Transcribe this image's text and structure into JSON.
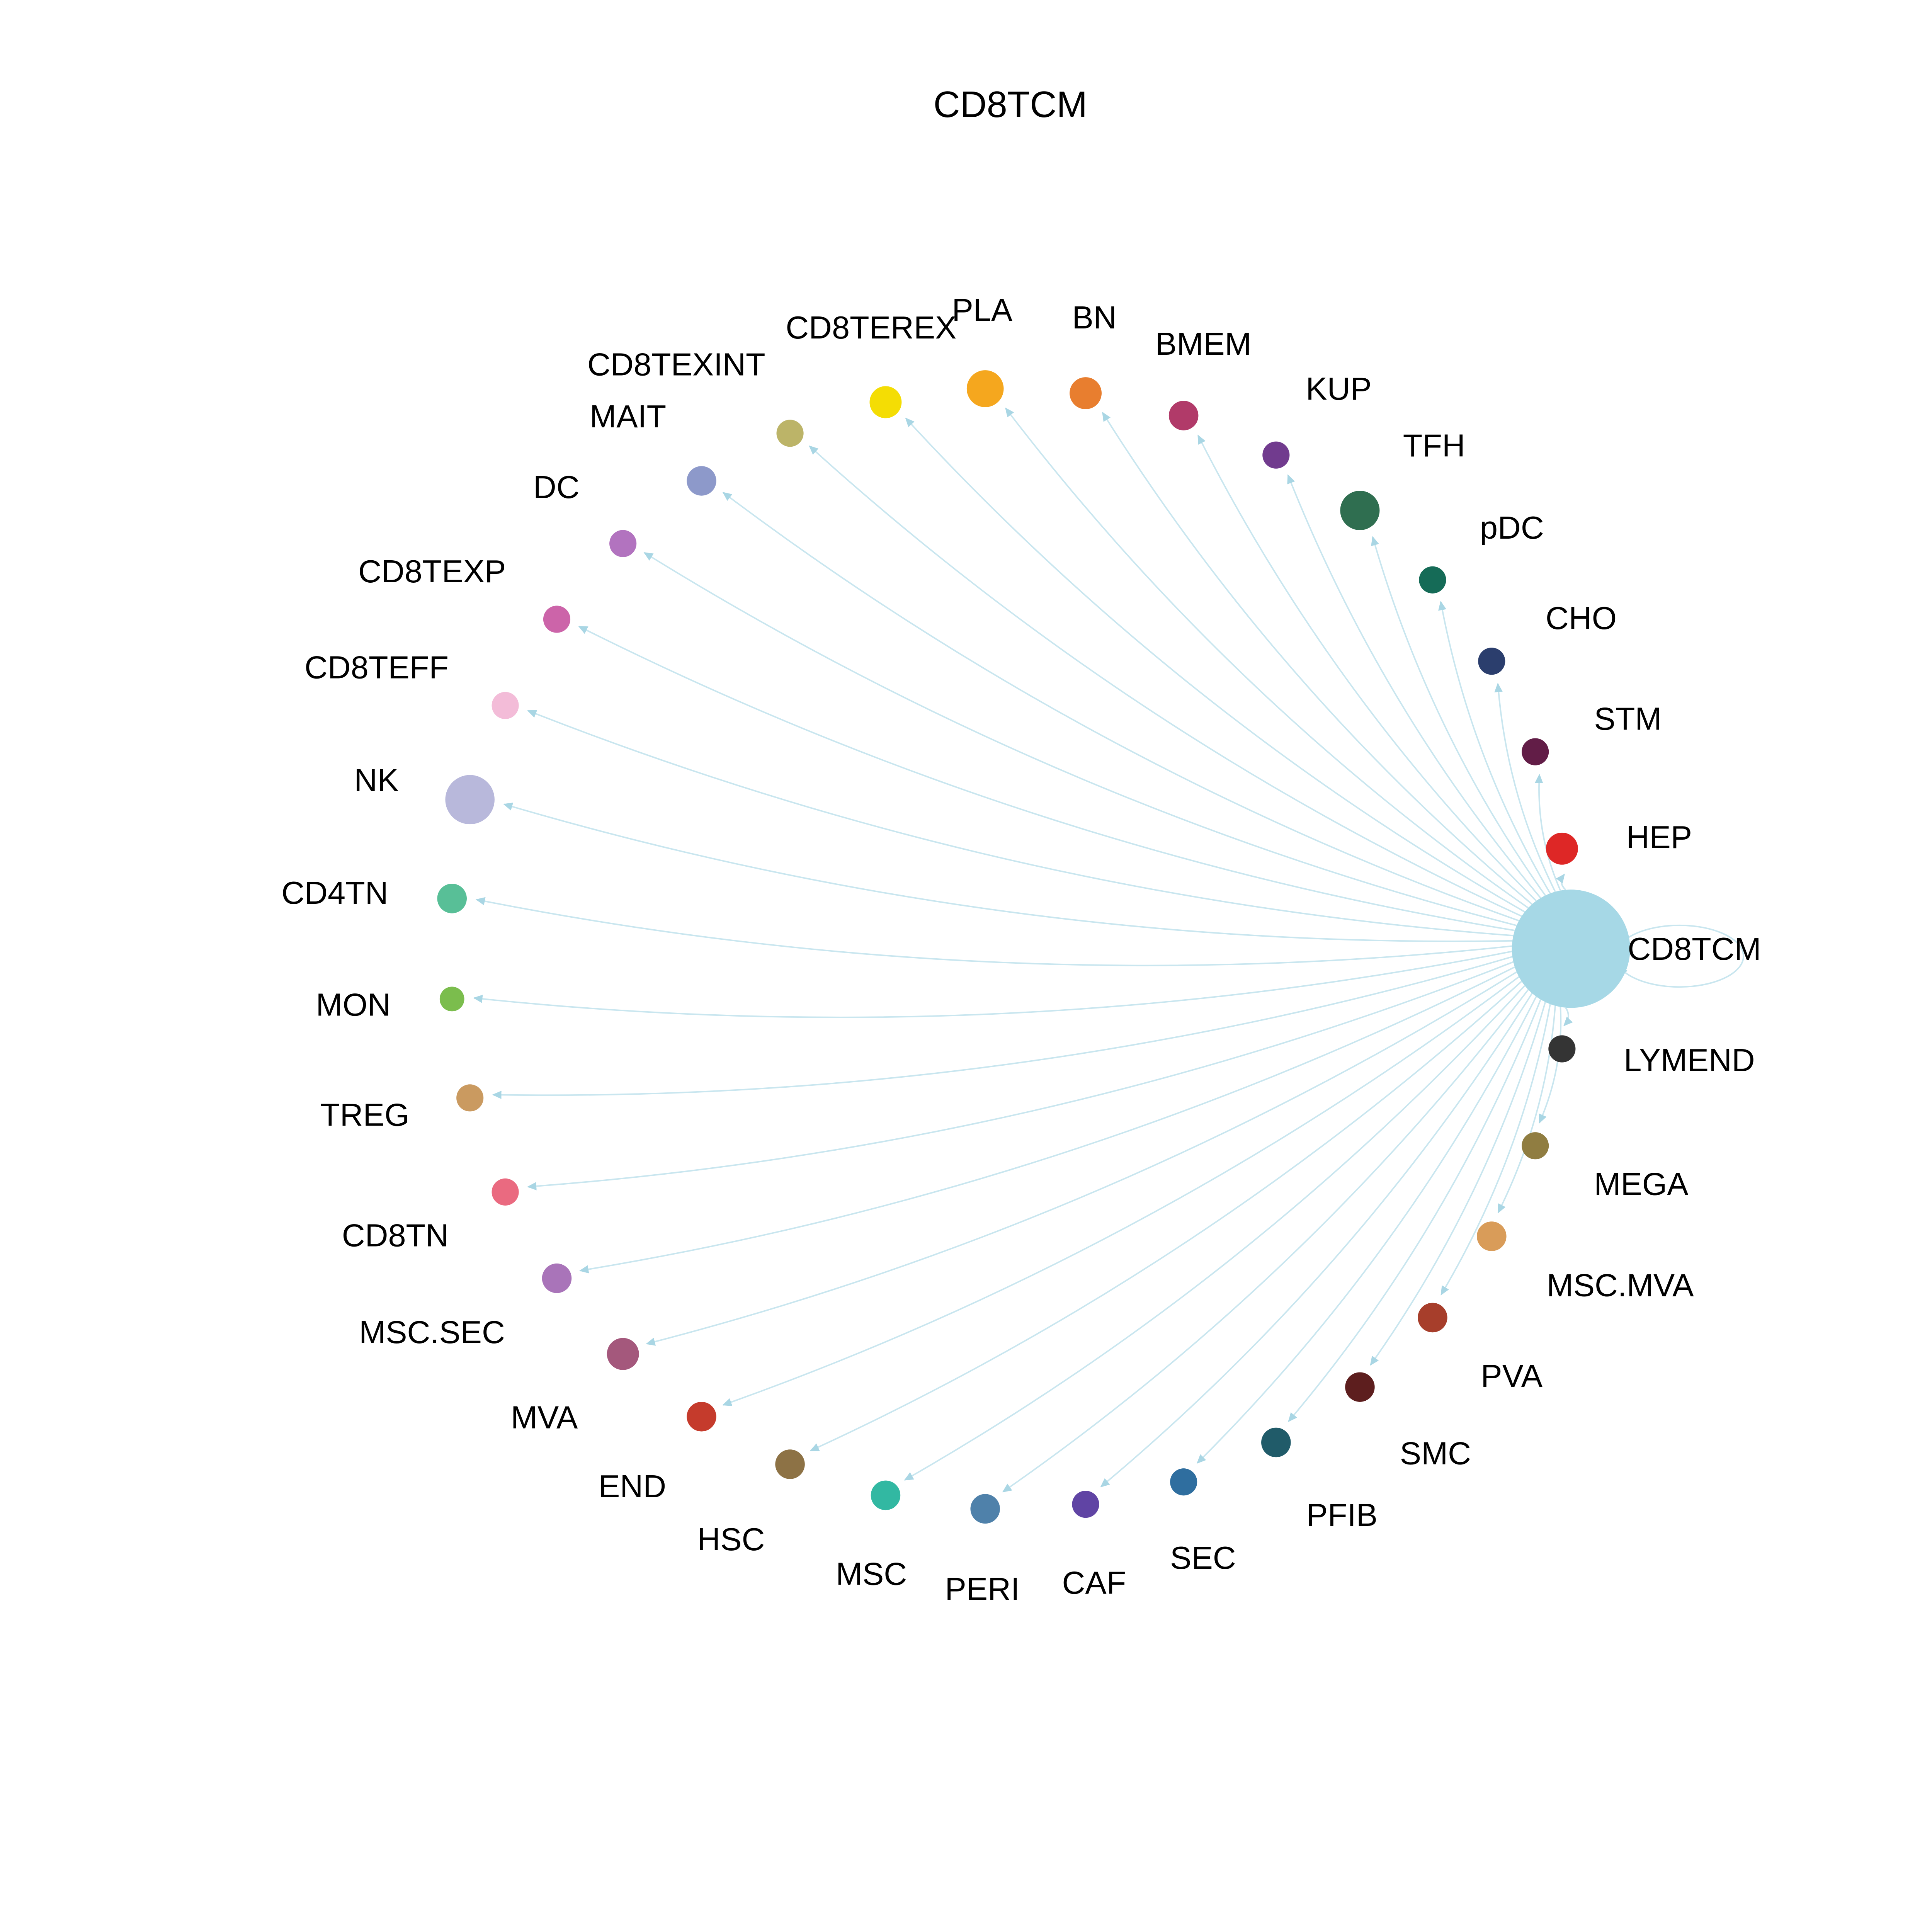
{
  "title": "CD8TCM",
  "hub": "CD8TCM",
  "style": {
    "background": "#ffffff",
    "edge_color": "#bfe2ec",
    "arrow_color": "#a9d6e4",
    "label_color": "#000000"
  },
  "graph": {
    "type": "circular-network",
    "nodes": [
      {
        "label": "CD8TCM",
        "color": "#a6d8e6",
        "size": 48
      },
      {
        "label": "HEP",
        "color": "#de2726",
        "size": 13
      },
      {
        "label": "STM",
        "color": "#621d47",
        "size": 11
      },
      {
        "label": "CHO",
        "color": "#2b3e6d",
        "size": 11
      },
      {
        "label": "pDC",
        "color": "#156b57",
        "size": 11
      },
      {
        "label": "TFH",
        "color": "#2f6e50",
        "size": 16
      },
      {
        "label": "KUP",
        "color": "#713b8e",
        "size": 11
      },
      {
        "label": "BMEM",
        "color": "#b13a69",
        "size": 12
      },
      {
        "label": "BN",
        "color": "#e87e2f",
        "size": 13
      },
      {
        "label": "PLA",
        "color": "#f5a71e",
        "size": 15
      },
      {
        "label": "CD8TEREX",
        "color": "#f4dd04",
        "size": 13
      },
      {
        "label": "CD8TEXINT",
        "color": "#bcb468",
        "size": 11
      },
      {
        "label": "MAIT",
        "color": "#8d99ca",
        "size": 12
      },
      {
        "label": "DC",
        "color": "#b273bf",
        "size": 11
      },
      {
        "label": "CD8TEXP",
        "color": "#cc64a9",
        "size": 11
      },
      {
        "label": "CD8TEFF",
        "color": "#f3bcd8",
        "size": 11
      },
      {
        "label": "NK",
        "color": "#b8b8db",
        "size": 20
      },
      {
        "label": "CD4TN",
        "color": "#58bf97",
        "size": 12
      },
      {
        "label": "MON",
        "color": "#7bbd4d",
        "size": 10
      },
      {
        "label": "TREG",
        "color": "#ca9a60",
        "size": 11
      },
      {
        "label": "CD8TN",
        "color": "#ea6a80",
        "size": 11
      },
      {
        "label": "MSC.SEC",
        "color": "#a974b9",
        "size": 12
      },
      {
        "label": "MVA",
        "color": "#a4587c",
        "size": 13
      },
      {
        "label": "END",
        "color": "#c53b2c",
        "size": 12
      },
      {
        "label": "HSC",
        "color": "#8d7245",
        "size": 12
      },
      {
        "label": "MSC",
        "color": "#32b8a2",
        "size": 12
      },
      {
        "label": "PERI",
        "color": "#4f81aa",
        "size": 12
      },
      {
        "label": "CAF",
        "color": "#6044a4",
        "size": 11
      },
      {
        "label": "SEC",
        "color": "#2f6e9f",
        "size": 11
      },
      {
        "label": "PFIB",
        "color": "#205b69",
        "size": 12
      },
      {
        "label": "SMC",
        "color": "#5d1e1e",
        "size": 12
      },
      {
        "label": "PVA",
        "color": "#a73e2b",
        "size": 12
      },
      {
        "label": "MSC.MVA",
        "color": "#d99c59",
        "size": 12
      },
      {
        "label": "MEGA",
        "color": "#907d41",
        "size": 11
      },
      {
        "label": "LYMEND",
        "color": "#343434",
        "size": 11
      }
    ],
    "edges": [
      {
        "source": "CD8TCM",
        "target": "CD8TCM"
      },
      {
        "source": "CD8TCM",
        "target": "HEP"
      },
      {
        "source": "CD8TCM",
        "target": "STM"
      },
      {
        "source": "CD8TCM",
        "target": "CHO"
      },
      {
        "source": "CD8TCM",
        "target": "pDC"
      },
      {
        "source": "CD8TCM",
        "target": "TFH"
      },
      {
        "source": "CD8TCM",
        "target": "KUP"
      },
      {
        "source": "CD8TCM",
        "target": "BMEM"
      },
      {
        "source": "CD8TCM",
        "target": "BN"
      },
      {
        "source": "CD8TCM",
        "target": "PLA"
      },
      {
        "source": "CD8TCM",
        "target": "CD8TEREX"
      },
      {
        "source": "CD8TCM",
        "target": "CD8TEXINT"
      },
      {
        "source": "CD8TCM",
        "target": "MAIT"
      },
      {
        "source": "CD8TCM",
        "target": "DC"
      },
      {
        "source": "CD8TCM",
        "target": "CD8TEXP"
      },
      {
        "source": "CD8TCM",
        "target": "CD8TEFF"
      },
      {
        "source": "CD8TCM",
        "target": "NK"
      },
      {
        "source": "CD8TCM",
        "target": "CD4TN"
      },
      {
        "source": "CD8TCM",
        "target": "MON"
      },
      {
        "source": "CD8TCM",
        "target": "TREG"
      },
      {
        "source": "CD8TCM",
        "target": "CD8TN"
      },
      {
        "source": "CD8TCM",
        "target": "MSC.SEC"
      },
      {
        "source": "CD8TCM",
        "target": "MVA"
      },
      {
        "source": "CD8TCM",
        "target": "END"
      },
      {
        "source": "CD8TCM",
        "target": "HSC"
      },
      {
        "source": "CD8TCM",
        "target": "MSC"
      },
      {
        "source": "CD8TCM",
        "target": "PERI"
      },
      {
        "source": "CD8TCM",
        "target": "CAF"
      },
      {
        "source": "CD8TCM",
        "target": "SEC"
      },
      {
        "source": "CD8TCM",
        "target": "PFIB"
      },
      {
        "source": "CD8TCM",
        "target": "SMC"
      },
      {
        "source": "CD8TCM",
        "target": "PVA"
      },
      {
        "source": "CD8TCM",
        "target": "MSC.MVA"
      },
      {
        "source": "CD8TCM",
        "target": "MEGA"
      },
      {
        "source": "CD8TCM",
        "target": "LYMEND"
      }
    ]
  }
}
